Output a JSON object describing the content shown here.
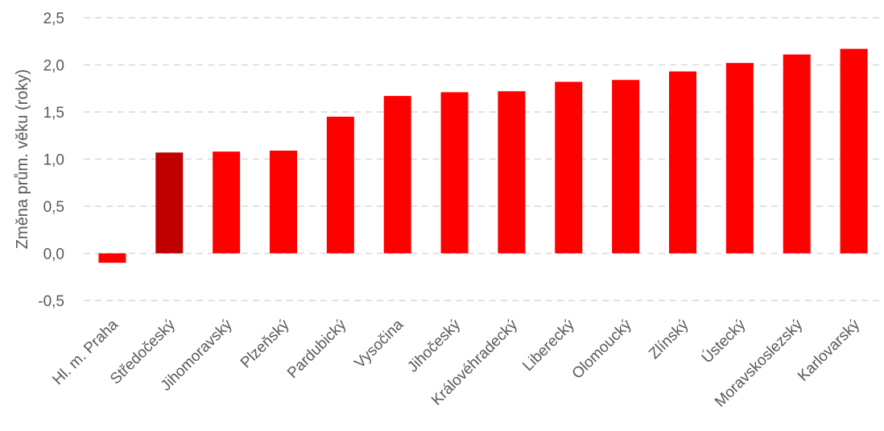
{
  "chart_data": {
    "type": "bar",
    "title": "",
    "xlabel": "",
    "ylabel": "Změna prům. věku (roky)",
    "ylim": [
      -0.5,
      2.5
    ],
    "yticks": [
      "-0,5",
      "0,0",
      "0,5",
      "1,0",
      "1,5",
      "2,0",
      "2,5"
    ],
    "ytick_values": [
      -0.5,
      0.0,
      0.5,
      1.0,
      1.5,
      2.0,
      2.5
    ],
    "grid": true,
    "legend": "none",
    "categories": [
      "Hl. m. Praha",
      "Středočeský",
      "Jihomoravský",
      "Plzeňský",
      "Pardubický",
      "Vysočina",
      "Jihočeský",
      "Královéhradecký",
      "Liberecký",
      "Olomoucký",
      "Zlínský",
      "Ústecký",
      "Moravskoslezský",
      "Karlovarský"
    ],
    "values": [
      -0.1,
      1.07,
      1.08,
      1.09,
      1.45,
      1.67,
      1.71,
      1.72,
      1.82,
      1.84,
      1.93,
      2.02,
      2.11,
      2.17
    ],
    "colors": {
      "default": "#ff0000",
      "highlight": "#c00000"
    },
    "highlight_index": 1
  }
}
